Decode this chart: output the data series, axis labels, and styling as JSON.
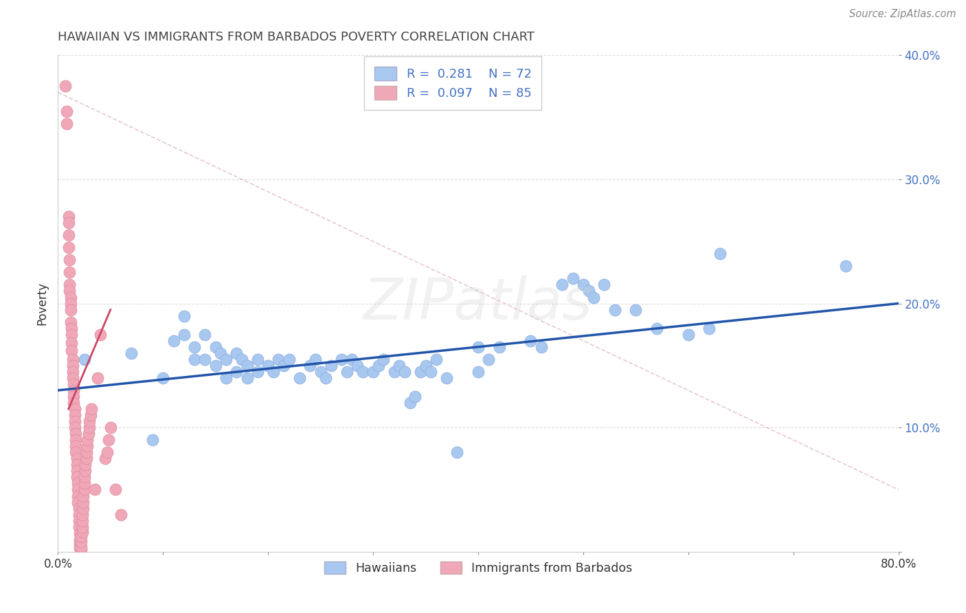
{
  "title": "HAWAIIAN VS IMMIGRANTS FROM BARBADOS POVERTY CORRELATION CHART",
  "source": "Source: ZipAtlas.com",
  "ylabel": "Poverty",
  "xlim": [
    0.0,
    0.8
  ],
  "ylim": [
    0.0,
    0.4
  ],
  "xticks": [
    0.0,
    0.1,
    0.2,
    0.3,
    0.4,
    0.5,
    0.6,
    0.7,
    0.8
  ],
  "xticklabels": [
    "0.0%",
    "",
    "",
    "",
    "",
    "",
    "",
    "",
    "80.0%"
  ],
  "yticks": [
    0.0,
    0.1,
    0.2,
    0.3,
    0.4
  ],
  "yticklabels": [
    "",
    "10.0%",
    "20.0%",
    "30.0%",
    "40.0%"
  ],
  "r_hawaiian": 0.281,
  "n_hawaiian": 72,
  "r_barbados": 0.097,
  "n_barbados": 85,
  "hawaiian_color": "#a8c8f0",
  "barbados_color": "#f0a8b8",
  "hawaiian_line_color": "#2255aa",
  "barbados_line_color": "#cc4466",
  "diagonal_color": "#ddbbcc",
  "background_color": "#ffffff",
  "hawaiian_dots": [
    [
      0.025,
      0.155
    ],
    [
      0.07,
      0.16
    ],
    [
      0.09,
      0.09
    ],
    [
      0.1,
      0.14
    ],
    [
      0.11,
      0.17
    ],
    [
      0.12,
      0.19
    ],
    [
      0.12,
      0.175
    ],
    [
      0.13,
      0.165
    ],
    [
      0.13,
      0.155
    ],
    [
      0.14,
      0.175
    ],
    [
      0.14,
      0.155
    ],
    [
      0.15,
      0.165
    ],
    [
      0.15,
      0.15
    ],
    [
      0.155,
      0.16
    ],
    [
      0.16,
      0.155
    ],
    [
      0.16,
      0.14
    ],
    [
      0.17,
      0.16
    ],
    [
      0.17,
      0.145
    ],
    [
      0.175,
      0.155
    ],
    [
      0.18,
      0.15
    ],
    [
      0.18,
      0.14
    ],
    [
      0.19,
      0.155
    ],
    [
      0.19,
      0.145
    ],
    [
      0.2,
      0.15
    ],
    [
      0.205,
      0.145
    ],
    [
      0.21,
      0.155
    ],
    [
      0.215,
      0.15
    ],
    [
      0.22,
      0.155
    ],
    [
      0.23,
      0.14
    ],
    [
      0.24,
      0.15
    ],
    [
      0.245,
      0.155
    ],
    [
      0.25,
      0.145
    ],
    [
      0.255,
      0.14
    ],
    [
      0.26,
      0.15
    ],
    [
      0.27,
      0.155
    ],
    [
      0.275,
      0.145
    ],
    [
      0.28,
      0.155
    ],
    [
      0.285,
      0.15
    ],
    [
      0.29,
      0.145
    ],
    [
      0.3,
      0.145
    ],
    [
      0.305,
      0.15
    ],
    [
      0.31,
      0.155
    ],
    [
      0.32,
      0.145
    ],
    [
      0.325,
      0.15
    ],
    [
      0.33,
      0.145
    ],
    [
      0.335,
      0.12
    ],
    [
      0.34,
      0.125
    ],
    [
      0.345,
      0.145
    ],
    [
      0.35,
      0.15
    ],
    [
      0.355,
      0.145
    ],
    [
      0.36,
      0.155
    ],
    [
      0.37,
      0.14
    ],
    [
      0.38,
      0.08
    ],
    [
      0.4,
      0.165
    ],
    [
      0.4,
      0.145
    ],
    [
      0.41,
      0.155
    ],
    [
      0.42,
      0.165
    ],
    [
      0.45,
      0.17
    ],
    [
      0.46,
      0.165
    ],
    [
      0.48,
      0.215
    ],
    [
      0.49,
      0.22
    ],
    [
      0.5,
      0.215
    ],
    [
      0.505,
      0.21
    ],
    [
      0.51,
      0.205
    ],
    [
      0.52,
      0.215
    ],
    [
      0.53,
      0.195
    ],
    [
      0.55,
      0.195
    ],
    [
      0.57,
      0.18
    ],
    [
      0.6,
      0.175
    ],
    [
      0.62,
      0.18
    ],
    [
      0.63,
      0.24
    ],
    [
      0.75,
      0.23
    ]
  ],
  "barbados_dots": [
    [
      0.007,
      0.375
    ],
    [
      0.008,
      0.355
    ],
    [
      0.008,
      0.345
    ],
    [
      0.01,
      0.27
    ],
    [
      0.01,
      0.265
    ],
    [
      0.01,
      0.255
    ],
    [
      0.01,
      0.245
    ],
    [
      0.011,
      0.235
    ],
    [
      0.011,
      0.225
    ],
    [
      0.011,
      0.215
    ],
    [
      0.011,
      0.21
    ],
    [
      0.012,
      0.205
    ],
    [
      0.012,
      0.2
    ],
    [
      0.012,
      0.195
    ],
    [
      0.012,
      0.185
    ],
    [
      0.013,
      0.18
    ],
    [
      0.013,
      0.175
    ],
    [
      0.013,
      0.168
    ],
    [
      0.013,
      0.162
    ],
    [
      0.014,
      0.155
    ],
    [
      0.014,
      0.15
    ],
    [
      0.014,
      0.145
    ],
    [
      0.014,
      0.14
    ],
    [
      0.015,
      0.135
    ],
    [
      0.015,
      0.13
    ],
    [
      0.015,
      0.125
    ],
    [
      0.015,
      0.12
    ],
    [
      0.016,
      0.115
    ],
    [
      0.016,
      0.11
    ],
    [
      0.016,
      0.105
    ],
    [
      0.016,
      0.1
    ],
    [
      0.017,
      0.095
    ],
    [
      0.017,
      0.09
    ],
    [
      0.017,
      0.085
    ],
    [
      0.017,
      0.08
    ],
    [
      0.018,
      0.075
    ],
    [
      0.018,
      0.07
    ],
    [
      0.018,
      0.065
    ],
    [
      0.018,
      0.06
    ],
    [
      0.019,
      0.055
    ],
    [
      0.019,
      0.05
    ],
    [
      0.019,
      0.045
    ],
    [
      0.019,
      0.04
    ],
    [
      0.02,
      0.035
    ],
    [
      0.02,
      0.03
    ],
    [
      0.02,
      0.025
    ],
    [
      0.02,
      0.02
    ],
    [
      0.021,
      0.015
    ],
    [
      0.021,
      0.01
    ],
    [
      0.021,
      0.006
    ],
    [
      0.021,
      0.003
    ],
    [
      0.022,
      0.002
    ],
    [
      0.022,
      0.004
    ],
    [
      0.022,
      0.008
    ],
    [
      0.022,
      0.012
    ],
    [
      0.023,
      0.016
    ],
    [
      0.023,
      0.02
    ],
    [
      0.023,
      0.025
    ],
    [
      0.023,
      0.03
    ],
    [
      0.024,
      0.035
    ],
    [
      0.024,
      0.04
    ],
    [
      0.024,
      0.045
    ],
    [
      0.025,
      0.05
    ],
    [
      0.025,
      0.055
    ],
    [
      0.025,
      0.06
    ],
    [
      0.026,
      0.065
    ],
    [
      0.026,
      0.07
    ],
    [
      0.027,
      0.075
    ],
    [
      0.027,
      0.08
    ],
    [
      0.028,
      0.085
    ],
    [
      0.028,
      0.09
    ],
    [
      0.029,
      0.095
    ],
    [
      0.03,
      0.1
    ],
    [
      0.03,
      0.105
    ],
    [
      0.031,
      0.11
    ],
    [
      0.032,
      0.115
    ],
    [
      0.035,
      0.05
    ],
    [
      0.038,
      0.14
    ],
    [
      0.04,
      0.175
    ],
    [
      0.045,
      0.075
    ],
    [
      0.047,
      0.08
    ],
    [
      0.048,
      0.09
    ],
    [
      0.05,
      0.1
    ],
    [
      0.055,
      0.05
    ],
    [
      0.06,
      0.03
    ]
  ]
}
